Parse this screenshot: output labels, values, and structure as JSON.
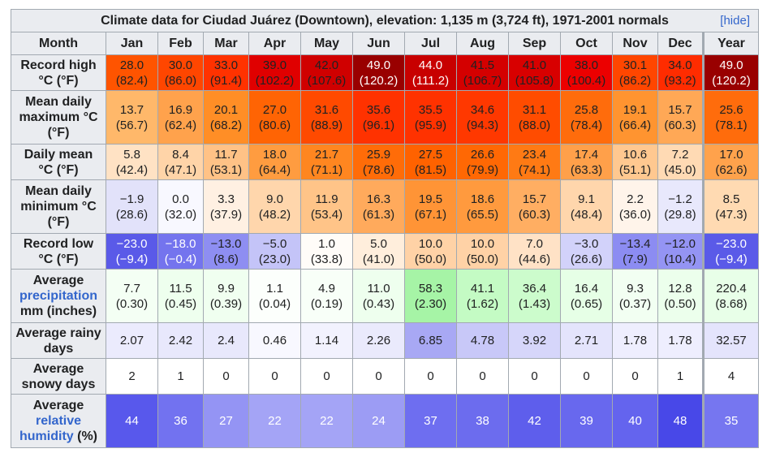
{
  "caption": "Climate data for Ciudad Juárez (Downtown), elevation: 1,135 m (3,724 ft), 1971-2001 normals",
  "hide_label": "[hide]",
  "month_header": "Month",
  "months": [
    "Jan",
    "Feb",
    "Mar",
    "Apr",
    "May",
    "Jun",
    "Jul",
    "Aug",
    "Sep",
    "Oct",
    "Nov",
    "Dec",
    "Year"
  ],
  "rows": [
    {
      "label_lines": [
        "Record high",
        "°C (°F)"
      ],
      "height": 44,
      "cells": [
        {
          "v": "28.0",
          "s": "(82.4)",
          "bg": "#ff5400"
        },
        {
          "v": "30.0",
          "s": "(86.0)",
          "bg": "#ff4600"
        },
        {
          "v": "33.0",
          "s": "(91.4)",
          "bg": "#ff3200"
        },
        {
          "v": "39.0",
          "s": "(102.2)",
          "bg": "#e00000"
        },
        {
          "v": "42.0",
          "s": "(107.6)",
          "bg": "#d00000"
        },
        {
          "v": "49.0",
          "s": "(120.2)",
          "bg": "#990000",
          "fg": "#ffffff"
        },
        {
          "v": "44.0",
          "s": "(111.2)",
          "bg": "#c80000",
          "fg": "#ffffff"
        },
        {
          "v": "41.5",
          "s": "(106.7)",
          "bg": "#d40000"
        },
        {
          "v": "41.0",
          "s": "(105.8)",
          "bg": "#d80000"
        },
        {
          "v": "38.0",
          "s": "(100.4)",
          "bg": "#ec0000"
        },
        {
          "v": "30.1",
          "s": "(86.2)",
          "bg": "#ff4600"
        },
        {
          "v": "34.0",
          "s": "(93.2)",
          "bg": "#ff2c00"
        },
        {
          "v": "49.0",
          "s": "(120.2)",
          "bg": "#990000",
          "fg": "#ffffff"
        }
      ]
    },
    {
      "label_lines": [
        "Mean daily",
        "maximum °C",
        "(°F)"
      ],
      "height": 66,
      "cells": [
        {
          "v": "13.7",
          "s": "(56.7)",
          "bg": "#ffb86a"
        },
        {
          "v": "16.9",
          "s": "(62.4)",
          "bg": "#ffa24c"
        },
        {
          "v": "20.1",
          "s": "(68.2)",
          "bg": "#ff8e26"
        },
        {
          "v": "27.0",
          "s": "(80.6)",
          "bg": "#ff6404"
        },
        {
          "v": "31.6",
          "s": "(88.9)",
          "bg": "#ff4a00"
        },
        {
          "v": "35.6",
          "s": "(96.1)",
          "bg": "#ff3200"
        },
        {
          "v": "35.5",
          "s": "(95.9)",
          "bg": "#ff3200"
        },
        {
          "v": "34.6",
          "s": "(94.3)",
          "bg": "#ff3800"
        },
        {
          "v": "31.1",
          "s": "(88.0)",
          "bg": "#ff4c00"
        },
        {
          "v": "25.8",
          "s": "(78.4)",
          "bg": "#ff6c0c"
        },
        {
          "v": "19.1",
          "s": "(66.4)",
          "bg": "#ff9430"
        },
        {
          "v": "15.7",
          "s": "(60.3)",
          "bg": "#ffa856"
        },
        {
          "v": "25.6",
          "s": "(78.1)",
          "bg": "#ff6c0c"
        }
      ]
    },
    {
      "label_lines": [
        "Daily mean",
        "°C (°F)"
      ],
      "height": 44,
      "cells": [
        {
          "v": "5.8",
          "s": "(42.4)",
          "bg": "#ffe2c4"
        },
        {
          "v": "8.4",
          "s": "(47.1)",
          "bg": "#ffd4a8"
        },
        {
          "v": "11.7",
          "s": "(53.1)",
          "bg": "#ffc286"
        },
        {
          "v": "18.0",
          "s": "(64.4)",
          "bg": "#ff9c40"
        },
        {
          "v": "21.7",
          "s": "(71.1)",
          "bg": "#ff8620"
        },
        {
          "v": "25.9",
          "s": "(78.6)",
          "bg": "#ff6c08"
        },
        {
          "v": "27.5",
          "s": "(81.5)",
          "bg": "#ff6200"
        },
        {
          "v": "26.6",
          "s": "(79.9)",
          "bg": "#ff6804"
        },
        {
          "v": "23.4",
          "s": "(74.1)",
          "bg": "#ff7a14"
        },
        {
          "v": "17.4",
          "s": "(63.3)",
          "bg": "#ffa04a"
        },
        {
          "v": "10.6",
          "s": "(51.1)",
          "bg": "#ffc890"
        },
        {
          "v": "7.2",
          "s": "(45.0)",
          "bg": "#ffdab4"
        },
        {
          "v": "17.0",
          "s": "(62.6)",
          "bg": "#ffa24c"
        }
      ]
    },
    {
      "label_lines": [
        "Mean daily",
        "minimum °C",
        "(°F)"
      ],
      "height": 66,
      "cells": [
        {
          "v": "−1.9",
          "s": "(28.6)",
          "bg": "#e2e2fa"
        },
        {
          "v": "0.0",
          "s": "(32.0)",
          "bg": "#f8f8ff"
        },
        {
          "v": "3.3",
          "s": "(37.9)",
          "bg": "#fff0e2"
        },
        {
          "v": "9.0",
          "s": "(48.2)",
          "bg": "#ffd6ac"
        },
        {
          "v": "11.9",
          "s": "(53.4)",
          "bg": "#ffc488"
        },
        {
          "v": "16.3",
          "s": "(61.3)",
          "bg": "#ffaa5c"
        },
        {
          "v": "19.5",
          "s": "(67.1)",
          "bg": "#ff9436"
        },
        {
          "v": "18.6",
          "s": "(65.5)",
          "bg": "#ff9a3e"
        },
        {
          "v": "15.7",
          "s": "(60.3)",
          "bg": "#ffae62"
        },
        {
          "v": "9.1",
          "s": "(48.4)",
          "bg": "#ffd6ac"
        },
        {
          "v": "2.2",
          "s": "(36.0)",
          "bg": "#fff4ea"
        },
        {
          "v": "−1.2",
          "s": "(29.8)",
          "bg": "#e8e8fc"
        },
        {
          "v": "8.5",
          "s": "(47.3)",
          "bg": "#ffdab2"
        }
      ]
    },
    {
      "label_lines": [
        "Record low",
        "°C (°F)"
      ],
      "height": 44,
      "cells": [
        {
          "v": "−23.0",
          "s": "(−9.4)",
          "bg": "#5a5ae8",
          "fg": "#ffffff"
        },
        {
          "v": "−18.0",
          "s": "(−0.4)",
          "bg": "#7474ee",
          "fg": "#ffffff"
        },
        {
          "v": "−13.0",
          "s": "(8.6)",
          "bg": "#8e8ef2"
        },
        {
          "v": "−5.0",
          "s": "(23.0)",
          "bg": "#c4c4f8"
        },
        {
          "v": "1.0",
          "s": "(33.8)",
          "bg": "#fffcf8"
        },
        {
          "v": "5.0",
          "s": "(41.0)",
          "bg": "#ffeedc"
        },
        {
          "v": "10.0",
          "s": "(50.0)",
          "bg": "#ffd2a6"
        },
        {
          "v": "10.0",
          "s": "(50.0)",
          "bg": "#ffd2a6"
        },
        {
          "v": "7.0",
          "s": "(44.6)",
          "bg": "#ffe2c6"
        },
        {
          "v": "−3.0",
          "s": "(26.6)",
          "bg": "#d2d2fa"
        },
        {
          "v": "−13.4",
          "s": "(7.9)",
          "bg": "#8c8cf2"
        },
        {
          "v": "−12.0",
          "s": "(10.4)",
          "bg": "#9494f4"
        },
        {
          "v": "−23.0",
          "s": "(−9.4)",
          "bg": "#5a5ae8",
          "fg": "#ffffff"
        }
      ]
    },
    {
      "label_lines": [
        "Average",
        "precipitation",
        "mm (inches)"
      ],
      "link_line": 1,
      "height": 66,
      "cells": [
        {
          "v": "7.7",
          "s": "(0.30)",
          "bg": "#f4fff4"
        },
        {
          "v": "11.5",
          "s": "(0.45)",
          "bg": "#eeffee"
        },
        {
          "v": "9.9",
          "s": "(0.39)",
          "bg": "#f0fff0"
        },
        {
          "v": "1.1",
          "s": "(0.04)",
          "bg": "#fcfffc"
        },
        {
          "v": "4.9",
          "s": "(0.19)",
          "bg": "#f8fff8"
        },
        {
          "v": "11.0",
          "s": "(0.43)",
          "bg": "#eeffee"
        },
        {
          "v": "58.3",
          "s": "(2.30)",
          "bg": "#a6f4a6"
        },
        {
          "v": "41.1",
          "s": "(1.62)",
          "bg": "#c4fbc4"
        },
        {
          "v": "36.4",
          "s": "(1.43)",
          "bg": "#ccfccc"
        },
        {
          "v": "16.4",
          "s": "(0.65)",
          "bg": "#e6ffe6"
        },
        {
          "v": "9.3",
          "s": "(0.37)",
          "bg": "#f2fff2"
        },
        {
          "v": "12.8",
          "s": "(0.50)",
          "bg": "#ecffec"
        },
        {
          "v": "220.4",
          "s": "(8.68)",
          "bg": "#e8ffe8"
        }
      ]
    },
    {
      "label_lines": [
        "Average rainy",
        "days"
      ],
      "height": 44,
      "cells": [
        {
          "v": "2.07",
          "bg": "#ebebfd"
        },
        {
          "v": "2.42",
          "bg": "#e8e8fc"
        },
        {
          "v": "2.4",
          "bg": "#e8e8fc"
        },
        {
          "v": "0.46",
          "bg": "#f8f8ff"
        },
        {
          "v": "1.14",
          "bg": "#f2f2fe"
        },
        {
          "v": "2.26",
          "bg": "#eaeafc"
        },
        {
          "v": "6.85",
          "bg": "#a8a8f4"
        },
        {
          "v": "4.78",
          "bg": "#c8c8f8"
        },
        {
          "v": "3.92",
          "bg": "#d6d6fa"
        },
        {
          "v": "2.71",
          "bg": "#e4e4fc"
        },
        {
          "v": "1.78",
          "bg": "#eeeefe"
        },
        {
          "v": "1.78",
          "bg": "#eeeefe"
        },
        {
          "v": "32.57",
          "bg": "#e4e4fc"
        }
      ]
    },
    {
      "label_lines": [
        "Average",
        "snowy days"
      ],
      "height": 44,
      "cells": [
        {
          "v": "2",
          "bg": "#ffffff"
        },
        {
          "v": "1",
          "bg": "#ffffff"
        },
        {
          "v": "0",
          "bg": "#ffffff"
        },
        {
          "v": "0",
          "bg": "#ffffff"
        },
        {
          "v": "0",
          "bg": "#ffffff"
        },
        {
          "v": "0",
          "bg": "#ffffff"
        },
        {
          "v": "0",
          "bg": "#ffffff"
        },
        {
          "v": "0",
          "bg": "#ffffff"
        },
        {
          "v": "0",
          "bg": "#ffffff"
        },
        {
          "v": "0",
          "bg": "#ffffff"
        },
        {
          "v": "0",
          "bg": "#ffffff"
        },
        {
          "v": "1",
          "bg": "#ffffff"
        },
        {
          "v": "4",
          "bg": "#ffffff"
        }
      ]
    },
    {
      "label_lines": [
        "Average",
        "relative",
        "humidity (%)"
      ],
      "link_line": 1,
      "link_line_2": 2,
      "height": 66,
      "cells": [
        {
          "v": "44",
          "bg": "#5858ec",
          "fg": "#ffffff"
        },
        {
          "v": "36",
          "bg": "#7272f0",
          "fg": "#ffffff"
        },
        {
          "v": "27",
          "bg": "#9494f4",
          "fg": "#ffffff"
        },
        {
          "v": "22",
          "bg": "#a4a4f6",
          "fg": "#ffffff"
        },
        {
          "v": "22",
          "bg": "#a4a4f6",
          "fg": "#ffffff"
        },
        {
          "v": "24",
          "bg": "#9c9cf4",
          "fg": "#ffffff"
        },
        {
          "v": "37",
          "bg": "#6e6ef0",
          "fg": "#ffffff"
        },
        {
          "v": "38",
          "bg": "#6c6cee",
          "fg": "#ffffff"
        },
        {
          "v": "42",
          "bg": "#5e5eec",
          "fg": "#ffffff"
        },
        {
          "v": "39",
          "bg": "#6868ee",
          "fg": "#ffffff"
        },
        {
          "v": "40",
          "bg": "#6464ee",
          "fg": "#ffffff"
        },
        {
          "v": "48",
          "bg": "#4848e8",
          "fg": "#ffffff"
        },
        {
          "v": "35",
          "bg": "#7676f0",
          "fg": "#ffffff"
        }
      ]
    }
  ],
  "colors": {
    "header_bg": "#eaecf0",
    "border": "#a2a9b1",
    "link": "#3366cc",
    "text": "#202122"
  }
}
